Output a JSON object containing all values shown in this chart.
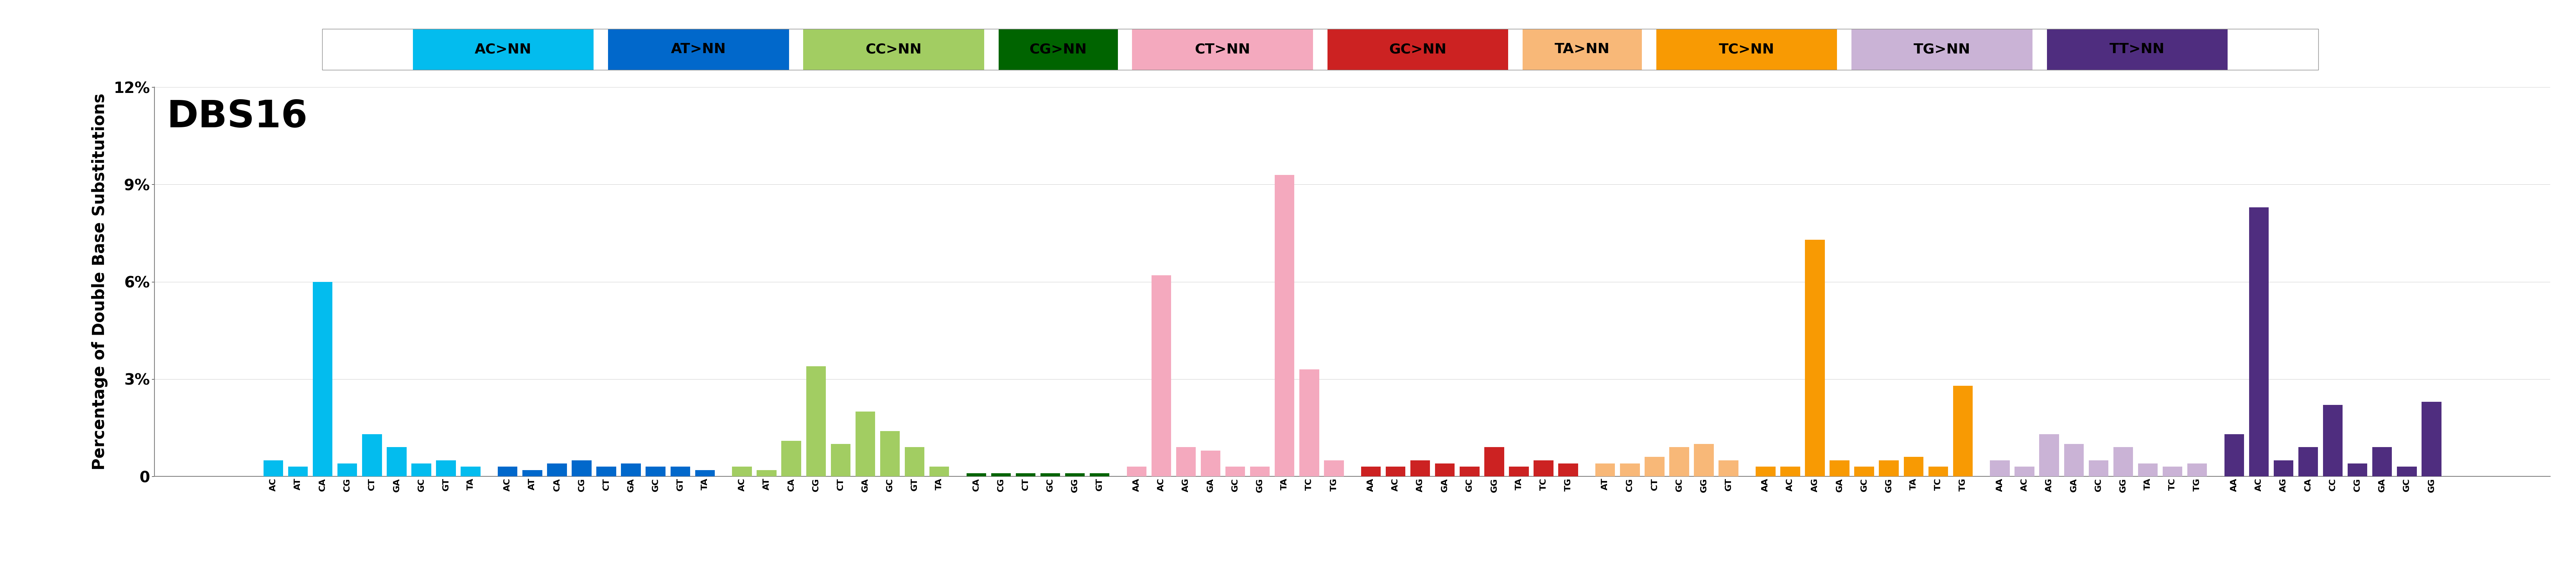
{
  "title": "DBS16",
  "ylabel": "Percentage of Double Base Substitutions",
  "ylim": [
    0,
    0.12
  ],
  "yticks": [
    0,
    0.03,
    0.06,
    0.09,
    0.12
  ],
  "ytick_labels": [
    "0",
    "3%",
    "6%",
    "9%",
    "12%"
  ],
  "groups": [
    {
      "name": "AC>NN",
      "color": "#03bcee"
    },
    {
      "name": "AT>NN",
      "color": "#0168cb"
    },
    {
      "name": "CC>NN",
      "color": "#a2cd62"
    },
    {
      "name": "CG>NN",
      "color": "#006400"
    },
    {
      "name": "CT>NN",
      "color": "#f4a9be"
    },
    {
      "name": "GC>NN",
      "color": "#cc2222"
    },
    {
      "name": "TA>NN",
      "color": "#f8b878"
    },
    {
      "name": "TC>NN",
      "color": "#f89a03"
    },
    {
      "name": "TG>NN",
      "color": "#cab3d6"
    },
    {
      "name": "TT>NN",
      "color": "#4f2d7f"
    }
  ],
  "group_sizes": [
    9,
    9,
    9,
    6,
    9,
    9,
    6,
    9,
    9,
    9
  ],
  "group_xtick_labels": [
    [
      "AC",
      "AT",
      "CA",
      "CG",
      "CT",
      "GA",
      "GC",
      "GT",
      "TA"
    ],
    [
      "AC",
      "AT",
      "CA",
      "CG",
      "CT",
      "GA",
      "GC",
      "GT",
      "TA"
    ],
    [
      "AC",
      "AT",
      "CA",
      "CG",
      "CT",
      "GA",
      "GC",
      "GT",
      "TA"
    ],
    [
      "CA",
      "CG",
      "CT",
      "GC",
      "GG",
      "GT"
    ],
    [
      "AA",
      "AC",
      "AG",
      "GA",
      "GC",
      "GG",
      "TA",
      "TC",
      "TG"
    ],
    [
      "AA",
      "AC",
      "AG",
      "GA",
      "GC",
      "GG",
      "TA",
      "TC",
      "TG"
    ],
    [
      "AT",
      "CG",
      "CT",
      "GC",
      "GG",
      "GT"
    ],
    [
      "AA",
      "AC",
      "AG",
      "GA",
      "GC",
      "GG",
      "TA",
      "TC",
      "TG"
    ],
    [
      "AA",
      "AC",
      "AG",
      "GA",
      "GC",
      "GG",
      "TA",
      "TC",
      "TG"
    ],
    [
      "AA",
      "AC",
      "AG",
      "CA",
      "CC",
      "CG",
      "GA",
      "GC",
      "GG"
    ]
  ],
  "values": [
    0.005,
    0.003,
    0.06,
    0.004,
    0.013,
    0.009,
    0.004,
    0.005,
    0.003,
    0.003,
    0.002,
    0.004,
    0.005,
    0.003,
    0.004,
    0.003,
    0.003,
    0.002,
    0.003,
    0.002,
    0.011,
    0.034,
    0.01,
    0.02,
    0.014,
    0.009,
    0.003,
    0.001,
    0.001,
    0.001,
    0.001,
    0.001,
    0.001,
    0.003,
    0.062,
    0.009,
    0.008,
    0.003,
    0.003,
    0.093,
    0.033,
    0.005,
    0.003,
    0.003,
    0.005,
    0.004,
    0.003,
    0.009,
    0.003,
    0.005,
    0.004,
    0.004,
    0.004,
    0.006,
    0.009,
    0.01,
    0.005,
    0.003,
    0.003,
    0.073,
    0.005,
    0.003,
    0.005,
    0.006,
    0.003,
    0.028,
    0.005,
    0.003,
    0.013,
    0.01,
    0.005,
    0.009,
    0.004,
    0.003,
    0.004,
    0.013,
    0.083,
    0.005,
    0.009,
    0.022,
    0.004,
    0.009,
    0.003,
    0.023
  ],
  "bar_colors": [
    "#03bcee",
    "#03bcee",
    "#03bcee",
    "#03bcee",
    "#03bcee",
    "#03bcee",
    "#03bcee",
    "#03bcee",
    "#03bcee",
    "#0168cb",
    "#0168cb",
    "#0168cb",
    "#0168cb",
    "#0168cb",
    "#0168cb",
    "#0168cb",
    "#0168cb",
    "#0168cb",
    "#a2cd62",
    "#a2cd62",
    "#a2cd62",
    "#a2cd62",
    "#a2cd62",
    "#a2cd62",
    "#a2cd62",
    "#a2cd62",
    "#a2cd62",
    "#006400",
    "#006400",
    "#006400",
    "#006400",
    "#006400",
    "#006400",
    "#f4a9be",
    "#f4a9be",
    "#f4a9be",
    "#f4a9be",
    "#f4a9be",
    "#f4a9be",
    "#f4a9be",
    "#f4a9be",
    "#f4a9be",
    "#cc2222",
    "#cc2222",
    "#cc2222",
    "#cc2222",
    "#cc2222",
    "#cc2222",
    "#cc2222",
    "#cc2222",
    "#cc2222",
    "#f8b878",
    "#f8b878",
    "#f8b878",
    "#f8b878",
    "#f8b878",
    "#f8b878",
    "#f89a03",
    "#f89a03",
    "#f89a03",
    "#f89a03",
    "#f89a03",
    "#f89a03",
    "#f89a03",
    "#f89a03",
    "#f89a03",
    "#cab3d6",
    "#cab3d6",
    "#cab3d6",
    "#cab3d6",
    "#cab3d6",
    "#cab3d6",
    "#cab3d6",
    "#cab3d6",
    "#cab3d6",
    "#4f2d7f",
    "#4f2d7f",
    "#4f2d7f",
    "#4f2d7f",
    "#4f2d7f",
    "#4f2d7f",
    "#4f2d7f",
    "#4f2d7f",
    "#4f2d7f"
  ]
}
